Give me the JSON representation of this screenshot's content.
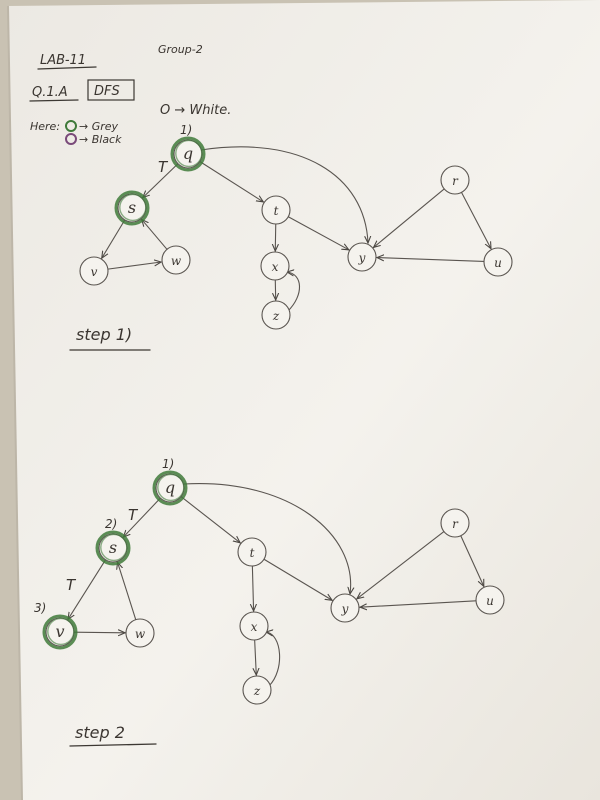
{
  "header": {
    "lab": "LAB-11",
    "group": "Group-2",
    "question": "Q.1.A",
    "algorithm": "DFS",
    "legend_here": "Here:",
    "legend_grey": "→ Grey",
    "legend_black": "→ Black",
    "legend_white": "O → White."
  },
  "colors": {
    "paper": "#f3f1ec",
    "pencil": "#5a5550",
    "grey_marker": "#3f7a3a",
    "black_marker": "#7a4a7a"
  },
  "steps": [
    {
      "id": "step1",
      "caption": "step 1)",
      "nodes": [
        {
          "id": "q",
          "label": "q",
          "grey": true,
          "time": "1)"
        },
        {
          "id": "s",
          "label": "s",
          "grey": true,
          "time": ""
        },
        {
          "id": "v",
          "label": "v",
          "grey": false,
          "time": ""
        },
        {
          "id": "w",
          "label": "w",
          "grey": false,
          "time": ""
        },
        {
          "id": "t",
          "label": "t",
          "grey": false,
          "time": ""
        },
        {
          "id": "x",
          "label": "x",
          "grey": false,
          "time": ""
        },
        {
          "id": "z",
          "label": "z",
          "grey": false,
          "time": ""
        },
        {
          "id": "y",
          "label": "y",
          "grey": false,
          "time": ""
        },
        {
          "id": "r",
          "label": "r",
          "grey": false,
          "time": ""
        },
        {
          "id": "u",
          "label": "u",
          "grey": false,
          "time": ""
        }
      ],
      "edges": [
        {
          "from": "q",
          "to": "s",
          "label": "T"
        },
        {
          "from": "s",
          "to": "v",
          "label": ""
        },
        {
          "from": "v",
          "to": "w",
          "label": ""
        },
        {
          "from": "w",
          "to": "s",
          "label": ""
        },
        {
          "from": "q",
          "to": "t",
          "label": ""
        },
        {
          "from": "q",
          "to": "y",
          "label": ""
        },
        {
          "from": "t",
          "to": "x",
          "label": ""
        },
        {
          "from": "x",
          "to": "z",
          "label": ""
        },
        {
          "from": "z",
          "to": "x",
          "label": ""
        },
        {
          "from": "t",
          "to": "y",
          "label": ""
        },
        {
          "from": "r",
          "to": "y",
          "label": ""
        },
        {
          "from": "r",
          "to": "u",
          "label": ""
        },
        {
          "from": "u",
          "to": "y",
          "label": ""
        }
      ]
    },
    {
      "id": "step2",
      "caption": "step 2",
      "nodes": [
        {
          "id": "q",
          "label": "q",
          "grey": true,
          "time": "1)"
        },
        {
          "id": "s",
          "label": "s",
          "grey": true,
          "time": "2)"
        },
        {
          "id": "v",
          "label": "v",
          "grey": true,
          "time": "3)"
        },
        {
          "id": "w",
          "label": "w",
          "grey": false,
          "time": ""
        },
        {
          "id": "t",
          "label": "t",
          "grey": false,
          "time": ""
        },
        {
          "id": "x",
          "label": "x",
          "grey": false,
          "time": ""
        },
        {
          "id": "z",
          "label": "z",
          "grey": false,
          "time": ""
        },
        {
          "id": "y",
          "label": "y",
          "grey": false,
          "time": ""
        },
        {
          "id": "r",
          "label": "r",
          "grey": false,
          "time": ""
        },
        {
          "id": "u",
          "label": "u",
          "grey": false,
          "time": ""
        }
      ],
      "edges": [
        {
          "from": "q",
          "to": "s",
          "label": "T"
        },
        {
          "from": "s",
          "to": "v",
          "label": "T"
        },
        {
          "from": "v",
          "to": "w",
          "label": ""
        },
        {
          "from": "w",
          "to": "s",
          "label": ""
        },
        {
          "from": "q",
          "to": "t",
          "label": ""
        },
        {
          "from": "q",
          "to": "y",
          "label": ""
        },
        {
          "from": "t",
          "to": "x",
          "label": ""
        },
        {
          "from": "x",
          "to": "z",
          "label": ""
        },
        {
          "from": "z",
          "to": "x",
          "label": ""
        },
        {
          "from": "t",
          "to": "y",
          "label": ""
        },
        {
          "from": "r",
          "to": "y",
          "label": ""
        },
        {
          "from": "r",
          "to": "u",
          "label": ""
        },
        {
          "from": "u",
          "to": "y",
          "label": ""
        }
      ]
    }
  ]
}
